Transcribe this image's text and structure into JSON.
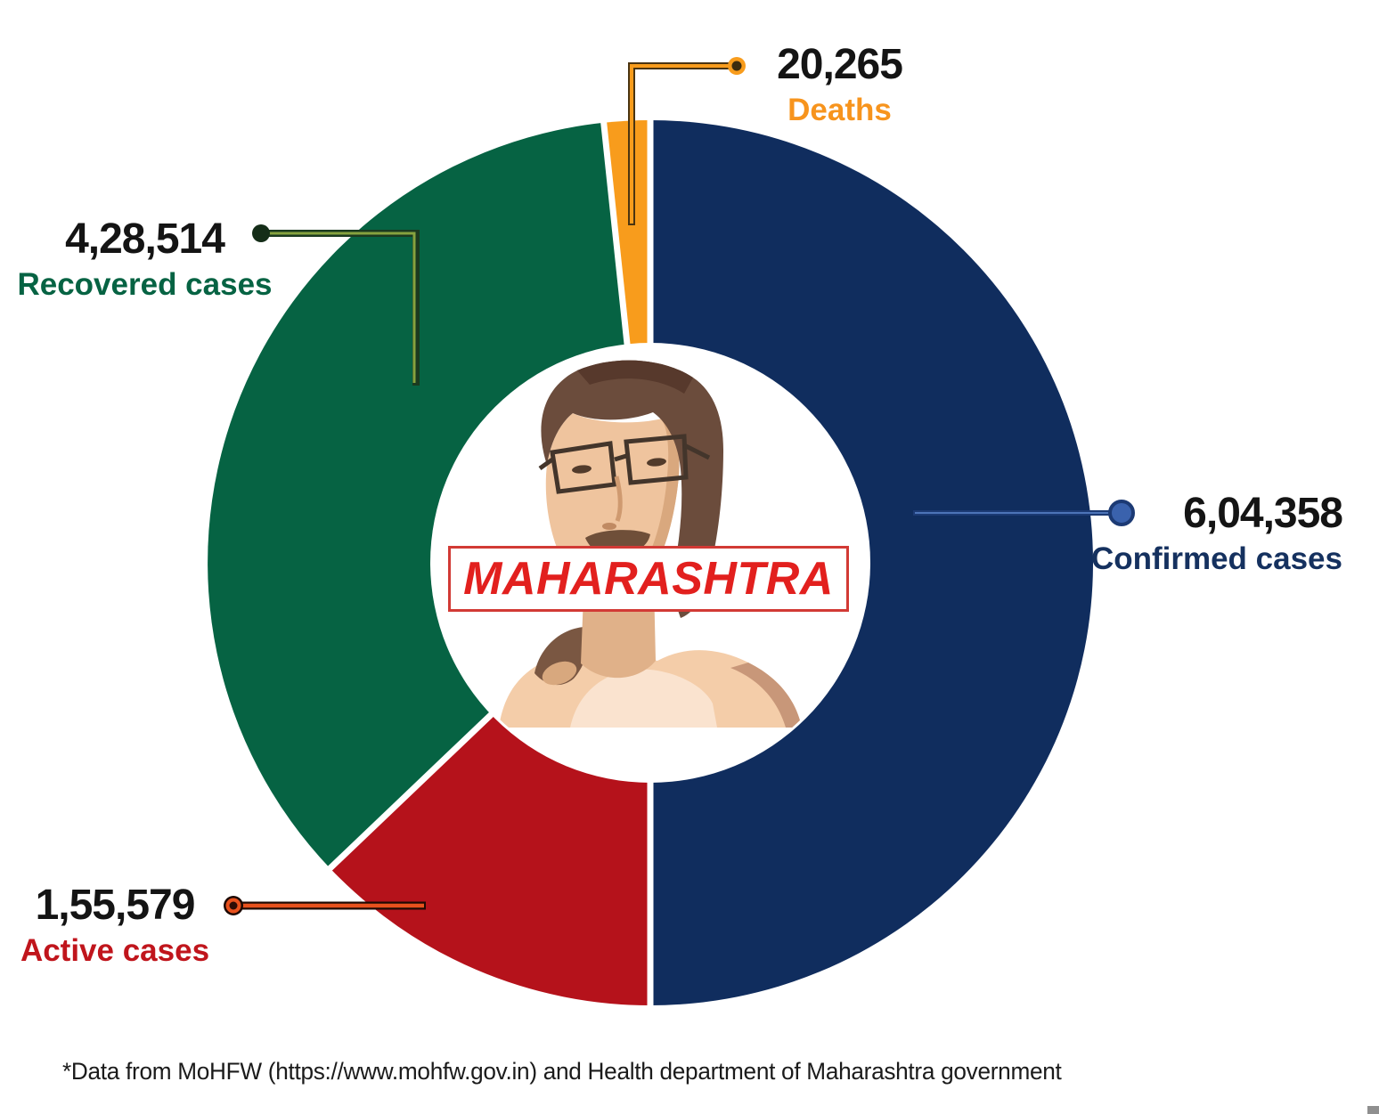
{
  "page": {
    "background": "#ffffff"
  },
  "chart_data": {
    "type": "donut",
    "title_center_banner": "MAHARASHTRA",
    "center_image": "stylized portrait of Uddhav Thackeray inside white donut hole",
    "direction": "clockwise",
    "start_angle_deg": 0,
    "slices": [
      {
        "id": "confirmed",
        "label": "Confirmed cases",
        "value": 604358,
        "display_value": "6,04,358",
        "color": "#102d5e",
        "label_color": "#15315f"
      },
      {
        "id": "active",
        "label": "Active cases",
        "value": 155579,
        "display_value": "1,55,579",
        "color": "#b5121b",
        "label_color": "#c0151c"
      },
      {
        "id": "recovered",
        "label": "Recovered cases",
        "value": 428514,
        "display_value": "4,28,514",
        "color": "#066343",
        "label_color": "#066343"
      },
      {
        "id": "deaths",
        "label": "Deaths",
        "value": 20265,
        "display_value": "20,265",
        "color": "#f89c1c",
        "label_color": "#f7941d"
      }
    ],
    "value_text_color": "#141414",
    "note": "Confirmed cases (blue) fill exactly half the ring; active + recovered + deaths, which sum to the confirmed total, fill the other half"
  },
  "footer": {
    "text": "*Data from MoHFW (https://www.mohfw.gov.in) and Health department of Maharashtra government"
  }
}
